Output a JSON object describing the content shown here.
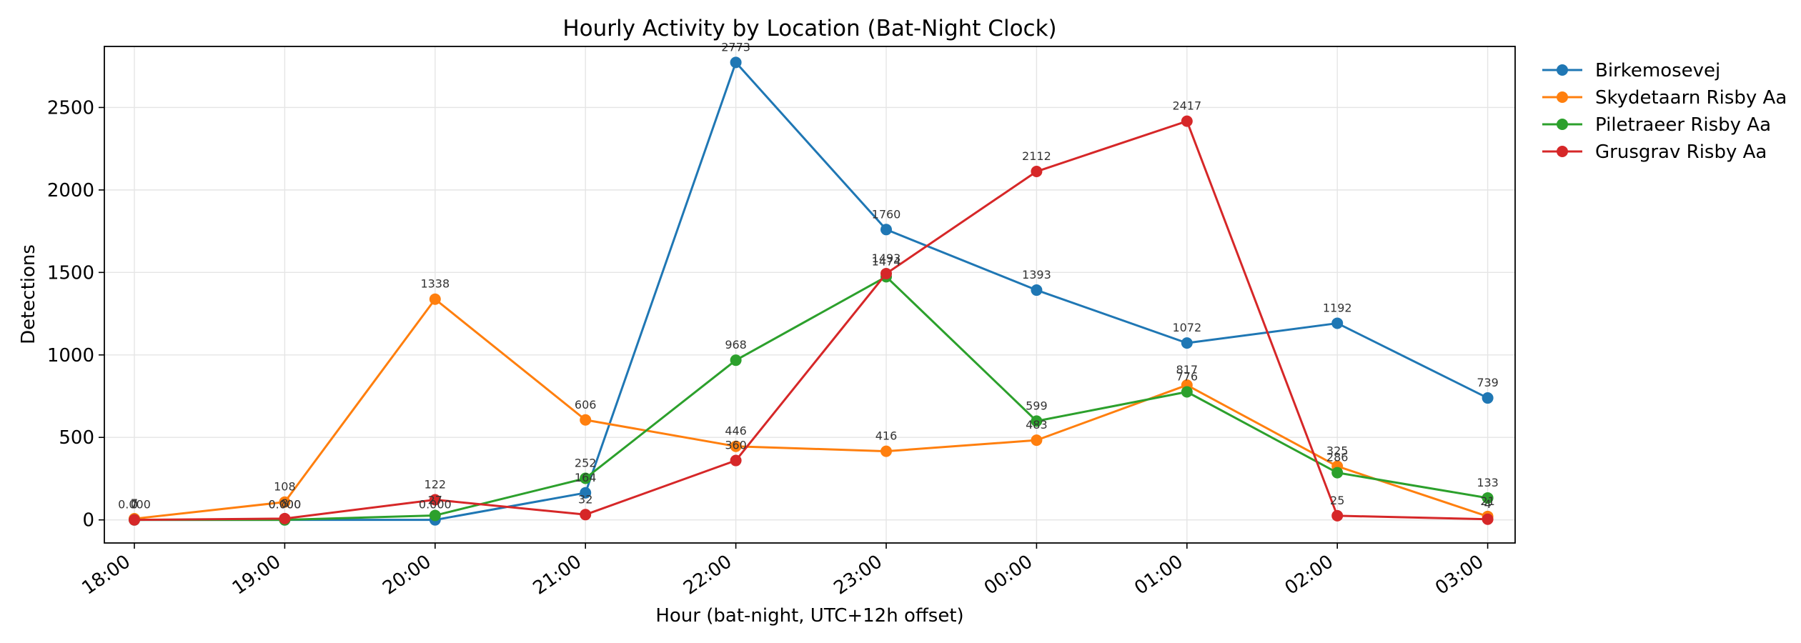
{
  "chart_data": {
    "type": "line",
    "title": "Hourly Activity by Location (Bat-Night Clock)",
    "xlabel": "Hour (bat-night, UTC+12h offset)",
    "ylabel": "Detections",
    "categories": [
      "18:00",
      "19:00",
      "20:00",
      "21:00",
      "22:00",
      "23:00",
      "00:00",
      "01:00",
      "02:00",
      "03:00"
    ],
    "ylim": [
      -140,
      2870
    ],
    "yticks": [
      0,
      500,
      1000,
      1500,
      2000,
      2500
    ],
    "grid": true,
    "legend_position": "outside-top-right",
    "series": [
      {
        "name": "Birkemosevej",
        "color": "#1f77b4",
        "values": [
          0,
          0,
          0,
          164,
          2773,
          1760,
          1393,
          1072,
          1192,
          739
        ],
        "labels": [
          "0",
          "0.000",
          "0.000",
          "164",
          "2773",
          "1760",
          "1393",
          "1072",
          "1192",
          "739"
        ]
      },
      {
        "name": "Skydetaarn Risby Aa",
        "color": "#ff7f0e",
        "values": [
          7,
          108,
          1338,
          606,
          446,
          416,
          483,
          817,
          325,
          21
        ],
        "labels": [
          "7",
          "108",
          "1338",
          "606",
          "446",
          "416",
          "483",
          "817",
          "325",
          "21"
        ]
      },
      {
        "name": "Piletraeer Risby Aa",
        "color": "#2ca02c",
        "values": [
          0,
          0,
          27,
          252,
          968,
          1474,
          599,
          776,
          286,
          133
        ],
        "labels": [
          "0.000",
          "0.000",
          "27",
          "252",
          "968",
          "1474",
          "599",
          "776",
          "286",
          "133"
        ]
      },
      {
        "name": "Grusgrav Risby Aa",
        "color": "#d62728",
        "values": [
          0,
          8,
          122,
          32,
          360,
          1493,
          2112,
          2417,
          25,
          4
        ],
        "labels": [
          "0",
          "8",
          "122",
          "32",
          "360",
          "1493",
          "2112",
          "2417",
          "25",
          "4"
        ]
      }
    ]
  }
}
